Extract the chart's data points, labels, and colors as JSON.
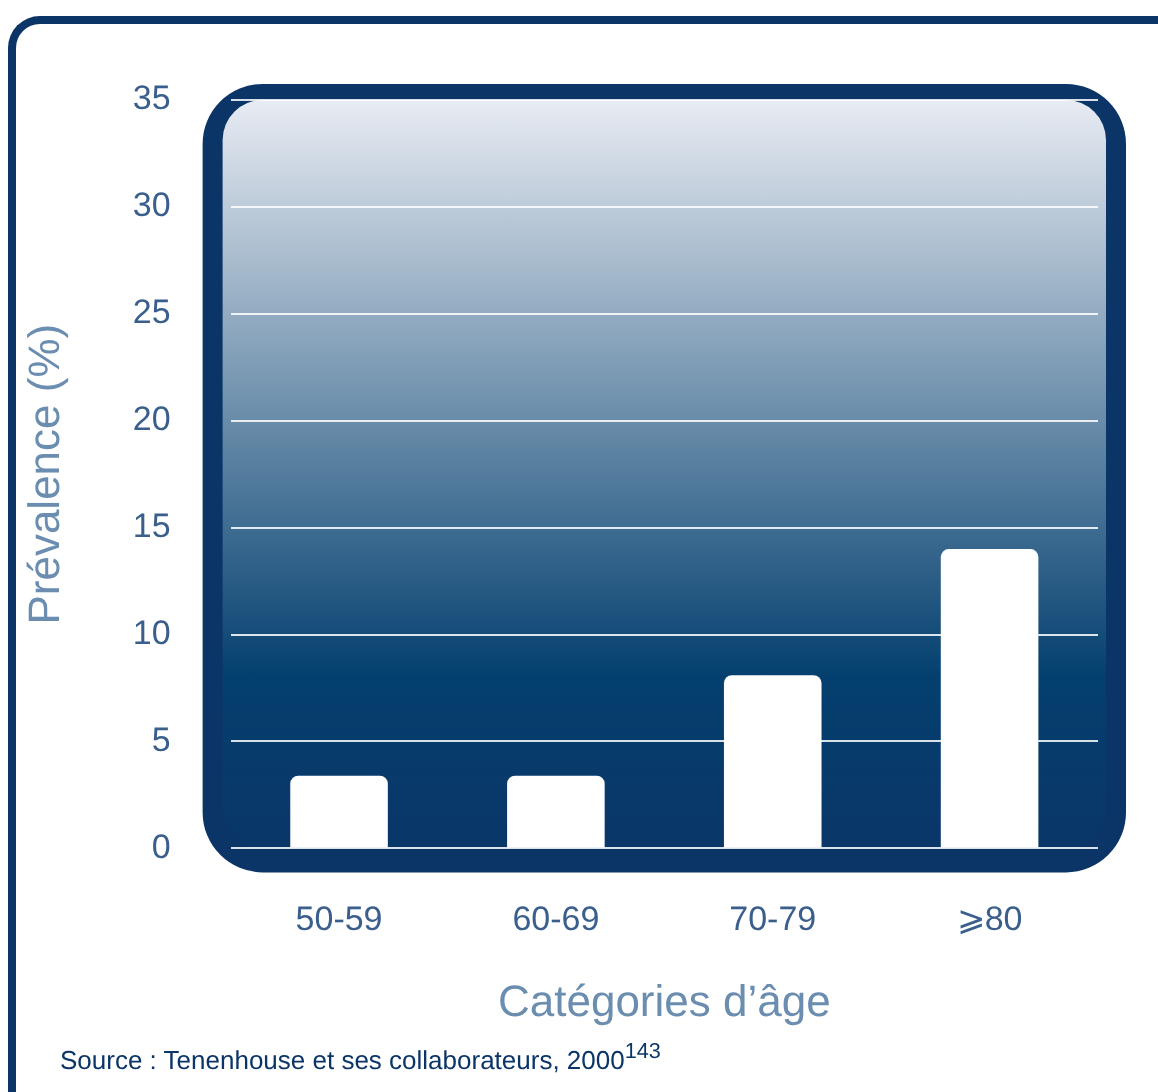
{
  "chart_data": {
    "type": "bar",
    "categories": [
      "50-59",
      "60-69",
      "70-79",
      "⩾80"
    ],
    "values": [
      3.4,
      3.4,
      8.1,
      14
    ],
    "color": "#ffffff",
    "xlabel": "Catégories d’âge",
    "ylabel": "Prévalence (%)",
    "ylim": [
      0,
      35
    ],
    "yticks": [
      0,
      5,
      10,
      15,
      20,
      25,
      30,
      35
    ],
    "grid": "y",
    "legend": false,
    "annotations": [
      "Source : Tenenhouse et ses collaborateurs, 2000$^{143}$"
    ]
  }
}
